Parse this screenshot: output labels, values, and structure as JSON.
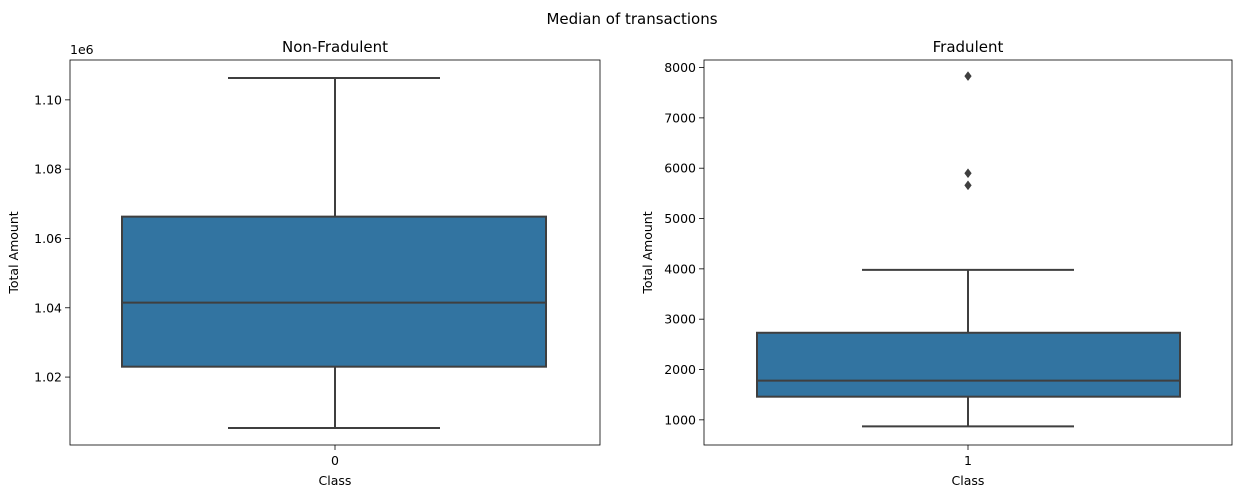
{
  "figure": {
    "suptitle": "Median of  transactions"
  },
  "style": {
    "box_fill": "#3274a1",
    "line_color": "#3f3f3f"
  },
  "chart_data": [
    {
      "type": "box",
      "title": "Non-Fradulent",
      "xlabel": "Class",
      "ylabel": "Total Amount",
      "category": "0",
      "offset_text": "1e6",
      "ylim": [
        1000400,
        1111500
      ],
      "yticks": [
        1020000,
        1040000,
        1060000,
        1080000,
        1100000
      ],
      "ytick_labels": [
        "1.02",
        "1.04",
        "1.06",
        "1.08",
        "1.10"
      ],
      "box": {
        "whisker_low": 1005300,
        "q1": 1023000,
        "median": 1041500,
        "q3": 1066300,
        "whisker_high": 1106300,
        "outliers": []
      }
    },
    {
      "type": "box",
      "title": "Fradulent",
      "xlabel": "Class",
      "ylabel": "Total Amount",
      "category": "1",
      "ylim": [
        500,
        8150
      ],
      "yticks": [
        1000,
        2000,
        3000,
        4000,
        5000,
        6000,
        7000,
        8000
      ],
      "ytick_labels": [
        "1000",
        "2000",
        "3000",
        "4000",
        "5000",
        "6000",
        "7000",
        "8000"
      ],
      "box": {
        "whisker_low": 870,
        "q1": 1460,
        "median": 1780,
        "q3": 2730,
        "whisker_high": 3980,
        "outliers": [
          7830,
          5900,
          5660
        ]
      }
    }
  ]
}
